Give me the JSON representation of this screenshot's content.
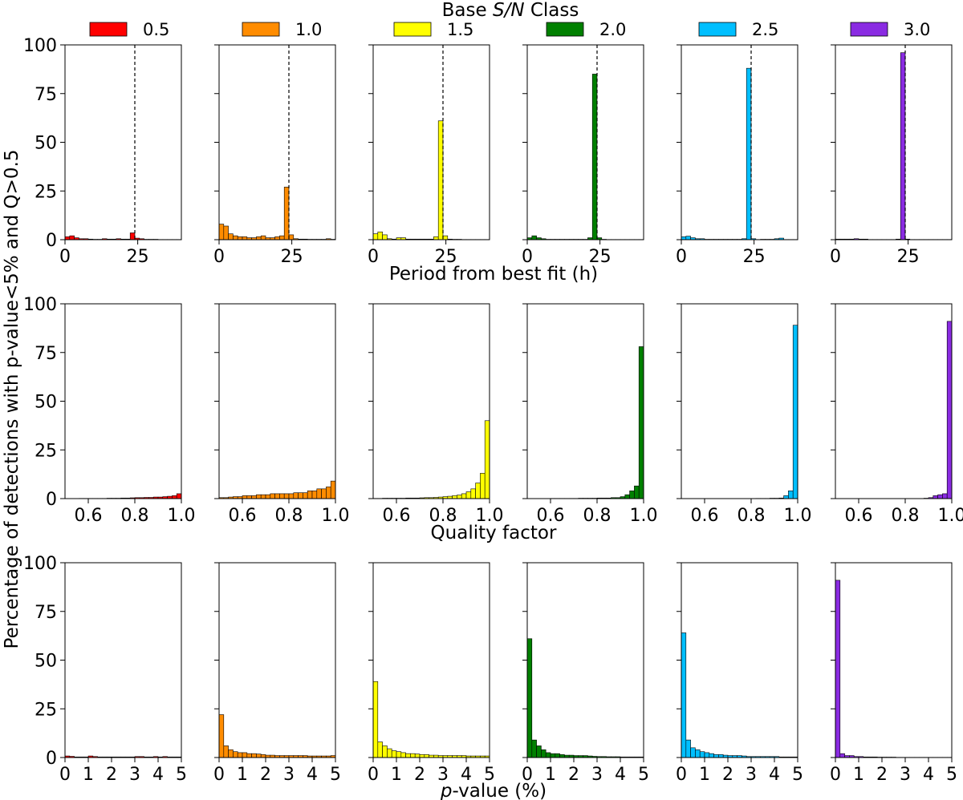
{
  "legend": {
    "title_plain": "Base ",
    "title_italic": "S/N",
    "title_suffix": " Class",
    "entries": [
      {
        "label": "0.5",
        "color": "#ff0000"
      },
      {
        "label": "1.0",
        "color": "#ff8c00"
      },
      {
        "label": "1.5",
        "color": "#ffff00"
      },
      {
        "label": "2.0",
        "color": "#008000"
      },
      {
        "label": "2.5",
        "color": "#00bfff"
      },
      {
        "label": "3.0",
        "color": "#8a2be2"
      }
    ]
  },
  "ylabel": "Percentage of detections with p-value<5% and Q>0.5",
  "yticks": [
    "0",
    "25",
    "50",
    "75",
    "100"
  ],
  "rows": [
    {
      "xlabel": "Period from best fit (h)",
      "xlim": [
        0,
        40
      ],
      "xticks": [
        {
          "v": 0,
          "label": "0"
        },
        {
          "v": 25,
          "label": "25"
        }
      ],
      "vline_at": 24
    },
    {
      "xlabel": "Quality factor",
      "xlim": [
        0.5,
        1.0
      ],
      "xticks": [
        {
          "v": 0.6,
          "label": "0.6"
        },
        {
          "v": 0.8,
          "label": "0.8"
        },
        {
          "v": 1.0,
          "label": "1.0"
        }
      ]
    },
    {
      "xlabel_italic": "p",
      "xlabel_rest": "-value (%)",
      "xlim": [
        0,
        5
      ],
      "xticks": [
        {
          "v": 0,
          "label": "0"
        },
        {
          "v": 1,
          "label": "1"
        },
        {
          "v": 2,
          "label": "2"
        },
        {
          "v": 3,
          "label": "3"
        },
        {
          "v": 4,
          "label": "4"
        },
        {
          "v": 5,
          "label": "5"
        }
      ]
    }
  ],
  "chart_data": [
    {
      "type": "bar",
      "title": "Period from best fit (h)",
      "xlabel": "Period from best fit (h)",
      "ylabel": "Percentage of detections with p-value<5% and Q>0.5",
      "xlim": [
        0,
        40
      ],
      "ylim": [
        0,
        100
      ],
      "bin_edges_start": 0,
      "bin_width": 1.6,
      "reference_line_x": 24,
      "series": [
        {
          "name": "0.5",
          "color": "#ff0000",
          "values": [
            1.5,
            2,
            1,
            0.5,
            0.5,
            0.3,
            0.2,
            0.2,
            0.5,
            0.3,
            0.3,
            0.5,
            0.3,
            0.3,
            3.5,
            0.8,
            0.5,
            0.2,
            0.2,
            0.2,
            0.1,
            0.1,
            0.1,
            0.1,
            0.1
          ]
        },
        {
          "name": "1.0",
          "color": "#ff8c00",
          "values": [
            8,
            7,
            3,
            2,
            1.5,
            1.5,
            1,
            1,
            1.5,
            2,
            1,
            1,
            1.5,
            2,
            27,
            2.5,
            0.5,
            0.3,
            0.3,
            0.2,
            0.2,
            0.2,
            0.2,
            0.5,
            0.2
          ]
        },
        {
          "name": "1.5",
          "color": "#ffff00",
          "values": [
            3,
            4,
            2.5,
            0.5,
            0.3,
            1,
            1,
            0.3,
            0.3,
            0.3,
            0.3,
            0.3,
            0.3,
            1.5,
            61,
            2,
            0.3,
            0.2,
            0.2,
            0.1,
            0.1,
            0.1,
            0.1,
            0.1,
            0.1
          ]
        },
        {
          "name": "2.0",
          "color": "#008000",
          "values": [
            1,
            2,
            1,
            0.5,
            0.2,
            0.2,
            0.2,
            0.2,
            0.2,
            0.2,
            0.2,
            0.2,
            0.2,
            1,
            85,
            1,
            0.2,
            0.1,
            0.1,
            0.1,
            0.1,
            0.1,
            0.1,
            0.1,
            0.1
          ]
        },
        {
          "name": "2.5",
          "color": "#00bfff",
          "values": [
            1.5,
            1.8,
            1,
            0.5,
            0.5,
            0.2,
            0.2,
            0.2,
            0.2,
            0.2,
            0.2,
            0.2,
            0.2,
            0.5,
            88,
            0.5,
            0.1,
            0.2,
            0.2,
            0.2,
            0.5,
            0.8,
            0.1,
            0.1,
            0.1
          ]
        },
        {
          "name": "3.0",
          "color": "#8a2be2",
          "values": [
            0.3,
            0.3,
            0.3,
            0.3,
            0.5,
            0.3,
            0.3,
            0.1,
            0.1,
            0.1,
            0.1,
            0.1,
            0.1,
            0.3,
            96,
            0.3,
            0.1,
            0.1,
            0.1,
            0.1,
            0.1,
            0.1,
            0.1,
            0.1,
            0.1
          ]
        }
      ]
    },
    {
      "type": "bar",
      "title": "Quality factor",
      "xlabel": "Quality factor",
      "ylabel": "Percentage of detections with p-value<5% and Q>0.5",
      "xlim": [
        0.5,
        1.0
      ],
      "ylim": [
        0,
        100
      ],
      "bin_edges_start": 0.5,
      "bin_width": 0.02,
      "series": [
        {
          "name": "0.5",
          "color": "#ff0000",
          "values": [
            0,
            0,
            0,
            0.1,
            0.1,
            0.1,
            0.1,
            0.1,
            0.1,
            0.2,
            0.2,
            0.2,
            0.3,
            0.3,
            0.4,
            0.5,
            0.5,
            0.6,
            0.6,
            0.8,
            0.8,
            1,
            1.2,
            1.5,
            2.5
          ]
        },
        {
          "name": "1.0",
          "color": "#ff8c00",
          "values": [
            0.5,
            0.5,
            0.8,
            1,
            1,
            1.5,
            1.5,
            1.5,
            2,
            2,
            2,
            2.5,
            2.5,
            2.5,
            2.5,
            2.5,
            3,
            3,
            3,
            4,
            4,
            5,
            5,
            6,
            9
          ]
        },
        {
          "name": "1.5",
          "color": "#ffff00",
          "values": [
            0.1,
            0.1,
            0.2,
            0.2,
            0.2,
            0.2,
            0.2,
            0.3,
            0.3,
            0.3,
            0.4,
            0.5,
            0.5,
            0.6,
            0.8,
            1,
            1.2,
            1.5,
            1.8,
            2.5,
            3.5,
            5,
            8,
            13,
            40
          ]
        },
        {
          "name": "2.0",
          "color": "#008000",
          "values": [
            0,
            0,
            0,
            0,
            0,
            0.1,
            0.1,
            0.1,
            0.1,
            0.1,
            0.1,
            0.2,
            0.2,
            0.2,
            0.2,
            0.3,
            0.3,
            0.3,
            0.5,
            0.5,
            1,
            2,
            4,
            6.5,
            78
          ]
        },
        {
          "name": "2.5",
          "color": "#00bfff",
          "values": [
            0,
            0,
            0,
            0,
            0,
            0,
            0,
            0,
            0,
            0,
            0,
            0,
            0,
            0,
            0,
            0,
            0.1,
            0.1,
            0.1,
            0.2,
            0.2,
            0.3,
            1.5,
            4,
            89
          ]
        },
        {
          "name": "3.0",
          "color": "#8a2be2",
          "values": [
            0,
            0,
            0,
            0,
            0,
            0,
            0,
            0,
            0,
            0,
            0,
            0,
            0,
            0,
            0,
            0,
            0,
            0,
            0,
            0.2,
            0.5,
            1.5,
            2,
            2.5,
            91
          ]
        }
      ]
    },
    {
      "type": "bar",
      "title": "p-value (%)",
      "xlabel": "p-value (%)",
      "ylabel": "Percentage of detections with p-value<5% and Q>0.5",
      "xlim": [
        0,
        5
      ],
      "ylim": [
        0,
        100
      ],
      "bin_edges_start": 0,
      "bin_width": 0.2,
      "series": [
        {
          "name": "0.5",
          "color": "#ff0000",
          "values": [
            0.8,
            0.6,
            0.3,
            0.3,
            0.3,
            0.8,
            0.5,
            0.3,
            0.3,
            0.3,
            0.3,
            0.3,
            0.3,
            0.3,
            0.3,
            0.5,
            0.5,
            0.3,
            0.3,
            0.5,
            0.3,
            0.5,
            0.3,
            0.3,
            0.3
          ]
        },
        {
          "name": "1.0",
          "color": "#ff8c00",
          "values": [
            22,
            6,
            4,
            3,
            2.5,
            2.5,
            2,
            2,
            1.8,
            1.5,
            1.2,
            1.2,
            1,
            1,
            1,
            1,
            1,
            1,
            1,
            0.8,
            0.8,
            0.8,
            0.8,
            0.8,
            1
          ]
        },
        {
          "name": "1.5",
          "color": "#ffff00",
          "values": [
            39,
            8,
            6,
            4.5,
            3.5,
            3,
            2.5,
            2,
            2,
            1.8,
            1.5,
            1.5,
            1.2,
            1.2,
            1,
            1,
            1,
            1,
            1,
            1,
            0.8,
            0.8,
            0.8,
            0.8,
            0.8
          ]
        },
        {
          "name": "2.0",
          "color": "#008000",
          "values": [
            61,
            9,
            6,
            4,
            2.5,
            2,
            2,
            1.5,
            1.2,
            1.2,
            1,
            1,
            1,
            0.8,
            0.6,
            0.5,
            0.5,
            0.4,
            0.4,
            0.4,
            0.3,
            0.3,
            0.3,
            0.3,
            0.3
          ]
        },
        {
          "name": "2.5",
          "color": "#00bfff",
          "values": [
            64,
            9,
            5,
            4,
            3,
            2.5,
            2,
            1.5,
            1.5,
            1.2,
            1,
            1,
            1,
            0.8,
            0.5,
            0.5,
            0.5,
            0.5,
            0.5,
            0.5,
            0.5,
            0.3,
            0.3,
            0.3,
            0.3
          ]
        },
        {
          "name": "3.0",
          "color": "#8a2be2",
          "values": [
            91,
            2,
            1,
            1,
            0.5,
            0.5,
            0.3,
            0.3,
            0.3,
            0.2,
            0.2,
            0.2,
            0.2,
            0.1,
            0.1,
            0.1,
            0.1,
            0.1,
            0.1,
            0.1,
            0.1,
            0.1,
            0.1,
            0.1,
            0.1
          ]
        }
      ]
    }
  ]
}
